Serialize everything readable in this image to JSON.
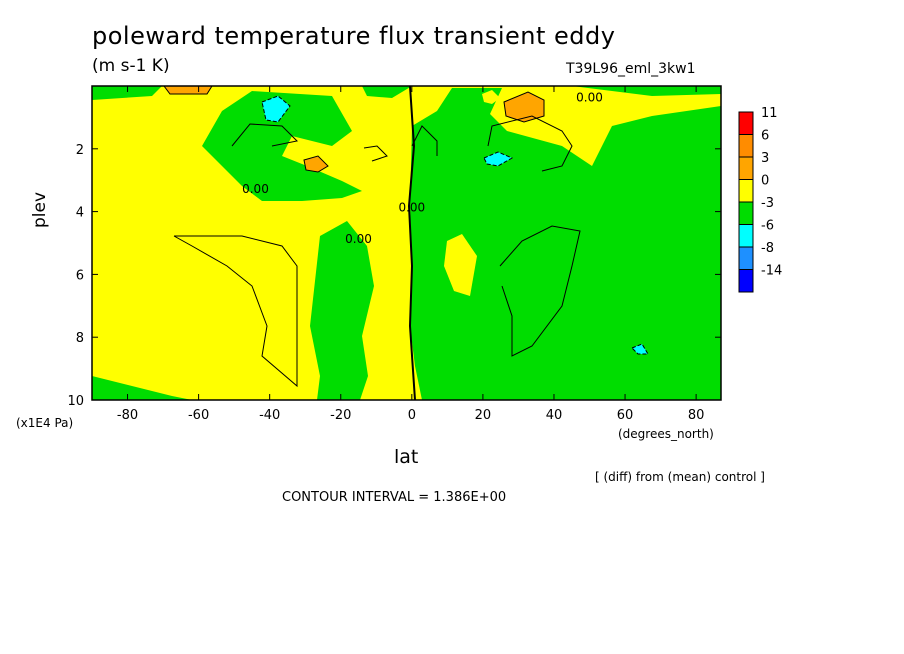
{
  "chart_data": {
    "type": "heatmap",
    "title": "poleward temperature flux transient eddy",
    "units": "(m s-1 K)",
    "run_name": "T39L96_eml_3kw1",
    "xlabel": "lat",
    "x_unit": "(degrees_north)",
    "ylabel": "plev",
    "y_unit": "(x1E4 Pa)",
    "xlim": [
      -90,
      87
    ],
    "ylim": [
      10,
      0
    ],
    "x_ticks": [
      -80,
      -60,
      -40,
      -20,
      0,
      20,
      40,
      60,
      80
    ],
    "y_ticks": [
      2,
      4,
      6,
      8,
      10
    ],
    "x_tick_labels": [
      "-80",
      "-60",
      "-40",
      "-20",
      "0",
      "20",
      "40",
      "60",
      "80"
    ],
    "y_tick_labels": [
      "2",
      "4",
      "6",
      "8",
      "10"
    ],
    "colorbar": {
      "labels": [
        "11",
        "6",
        "3",
        "0",
        "-3",
        "-6",
        "-8",
        "-14"
      ],
      "colors": [
        "#ff0000",
        "#ff8c00",
        "#ffa500",
        "#ffff00",
        "#00dd00",
        "#00ffff",
        "#1e90ff",
        "#0000ff"
      ]
    },
    "region_colors": {
      "positive": "#ffff00",
      "negative": "#00dd00",
      "strong_positive": "#ffa500",
      "strong_negative": "#00ffff"
    },
    "contour_labels": [
      {
        "text": "0.00",
        "lat": -44,
        "plev": 3.4
      },
      {
        "text": "0.00",
        "lat": -15,
        "plev": 5.0
      },
      {
        "text": "0.00",
        "lat": 0,
        "plev": 4.0
      },
      {
        "text": "0.00",
        "lat": 50,
        "plev": 0.5
      }
    ],
    "contour_interval": "CONTOUR INTERVAL = 1.386E+00",
    "note": "[ (diff) from (mean) control ]"
  }
}
